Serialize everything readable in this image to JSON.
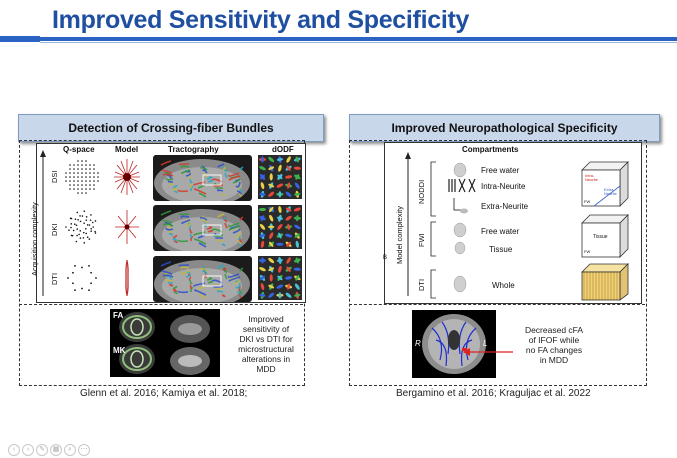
{
  "title": "Improved Sensitivity and Specificity",
  "left": {
    "header": "Detection of Crossing-fiber Bundles",
    "col_qspace": "Q-space",
    "col_model": "Model",
    "col_tract": "Tractography",
    "col_dodf": "dODF",
    "panel_letter": "A",
    "axis_label": "Acquisition complexity",
    "rows": [
      "DSI",
      "DKI",
      "DTI"
    ],
    "fa_label": "FA",
    "mk_label": "MK",
    "caption_lines": [
      "Improved",
      "sensitivity of",
      "DKI vs DTI for",
      "microstructural",
      "alterations in",
      "MDD"
    ],
    "citation": "Glenn et al. 2016; Kamiya et al. 2018;"
  },
  "right": {
    "header": "Improved Neuropathological Specificity",
    "compartments_title": "Compartments",
    "axis_label": "Model complexity",
    "axis_letter": "B",
    "groups": [
      "NODDI",
      "FWI",
      "DTI"
    ],
    "comp_free_water_1": "Free water",
    "comp_intra": "Intra-Neurite",
    "comp_extra": "Extra-Neurite",
    "comp_free_water_2": "Free water",
    "comp_tissue": "Tissue",
    "comp_whole": "Whole",
    "cube_noddi_1": "Intra-",
    "cube_noddi_2": "Neurite",
    "cube_noddi_3": "Extra-",
    "cube_noddi_4": "Neurite",
    "cube_noddi_fw": "FW",
    "cube_fwi_tissue": "Tissue",
    "cube_fwi_fw": "FW",
    "brain_left": "R",
    "brain_right": "L",
    "caption_lines": [
      "Decreased cFA",
      "of IFOF while",
      "no FA changes",
      "in MDD"
    ],
    "citation": "Bergamino et al. 2016; Kraguljac et al. 2022"
  }
}
